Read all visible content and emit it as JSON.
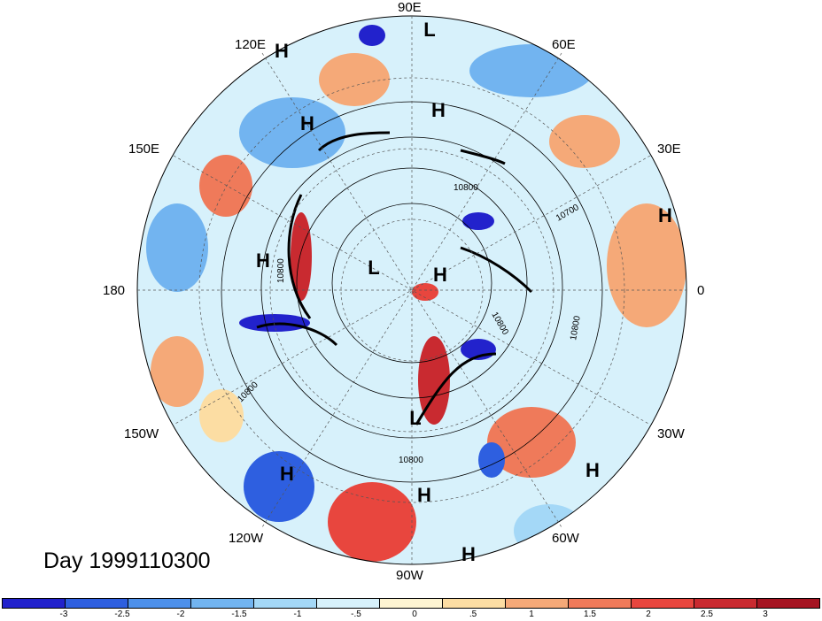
{
  "longitude_labels": {
    "top": "90E",
    "top_left": "120E",
    "top_right": "60E",
    "upper_left": "150E",
    "upper_right": "30E",
    "left": "180",
    "right": "0",
    "lower_left": "150W",
    "lower_right": "30W",
    "bottom_left": "120W",
    "bottom_right": "60W",
    "bottom": "90W"
  },
  "pressure_centers": [
    {
      "label": "L"
    },
    {
      "label": "H"
    },
    {
      "label": "H"
    },
    {
      "label": "H"
    },
    {
      "label": "H"
    },
    {
      "label": "H"
    },
    {
      "label": "L"
    },
    {
      "label": "H"
    },
    {
      "label": "L"
    },
    {
      "label": "H"
    },
    {
      "label": "H"
    },
    {
      "label": "H"
    },
    {
      "label": "H"
    }
  ],
  "contour_labels": [
    "10800",
    "10700",
    "10800",
    "10800",
    "10800",
    "10800",
    "10800"
  ],
  "date_label": "Day 1999110300",
  "colorbar": {
    "colors": [
      "#2222cc",
      "#2e5fe0",
      "#4d90ea",
      "#72b4f0",
      "#a4d8f7",
      "#d7f1fb",
      "#fdf4d2",
      "#fcdda3",
      "#f5a978",
      "#ef7a5a",
      "#e8463e",
      "#c92a30",
      "#a51422"
    ],
    "tick_labels": [
      "-3",
      "-2.5",
      "-2",
      "-1.5",
      "-1",
      "-.5",
      "0",
      ".5",
      "1",
      "1.5",
      "2",
      "2.5",
      "3"
    ]
  }
}
